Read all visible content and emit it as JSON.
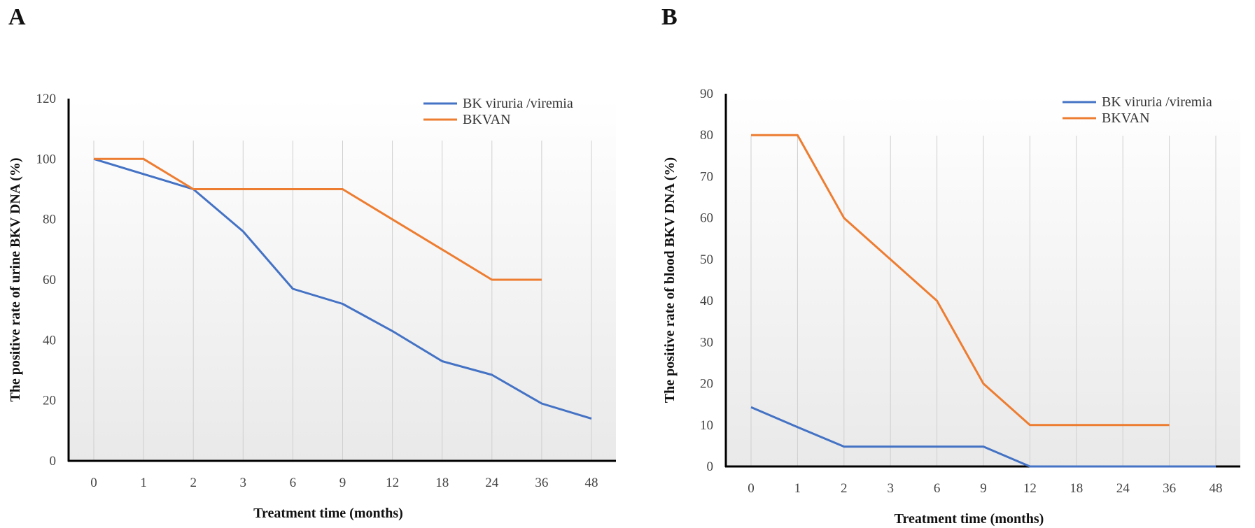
{
  "panels": [
    {
      "letter": "A"
    },
    {
      "letter": "B"
    }
  ],
  "chart_data": [
    {
      "type": "line",
      "panel": "A",
      "title": "",
      "xlabel": "Treatment time (months)",
      "ylabel": "The positive rate of urine BKV DNA (%)",
      "categories": [
        "0",
        "1",
        "2",
        "3",
        "6",
        "9",
        "12",
        "18",
        "24",
        "36",
        "48"
      ],
      "ylim": [
        0,
        120
      ],
      "yticks": [
        0,
        20,
        40,
        60,
        80,
        100,
        120
      ],
      "grid": "vertical",
      "legend": "top-right",
      "series": [
        {
          "name": "BK viruria /viremia",
          "color": "#4472C4",
          "values": [
            100,
            95,
            90,
            76,
            57,
            52,
            43,
            33,
            28.5,
            19,
            14
          ]
        },
        {
          "name": "BKVAN",
          "color": "#ED7D31",
          "values": [
            100,
            100,
            90,
            90,
            90,
            90,
            80,
            70,
            60,
            60,
            null
          ]
        }
      ]
    },
    {
      "type": "line",
      "panel": "B",
      "title": "",
      "xlabel": "Treatment time (months)",
      "ylabel": "The positive rate of blood BKV DNA (%)",
      "categories": [
        "0",
        "1",
        "2",
        "3",
        "6",
        "9",
        "12",
        "18",
        "24",
        "36",
        "48"
      ],
      "ylim": [
        0,
        90
      ],
      "yticks": [
        0,
        10,
        20,
        30,
        40,
        50,
        60,
        70,
        80,
        90
      ],
      "grid": "vertical",
      "legend": "top-right",
      "series": [
        {
          "name": "BK viruria /viremia",
          "color": "#4472C4",
          "values": [
            14.3,
            9.5,
            4.8,
            4.8,
            4.8,
            4.8,
            0,
            0,
            0,
            0,
            0
          ]
        },
        {
          "name": "BKVAN",
          "color": "#ED7D31",
          "values": [
            80,
            80,
            60,
            50,
            40,
            20,
            10,
            10,
            10,
            10,
            null
          ]
        }
      ]
    }
  ]
}
